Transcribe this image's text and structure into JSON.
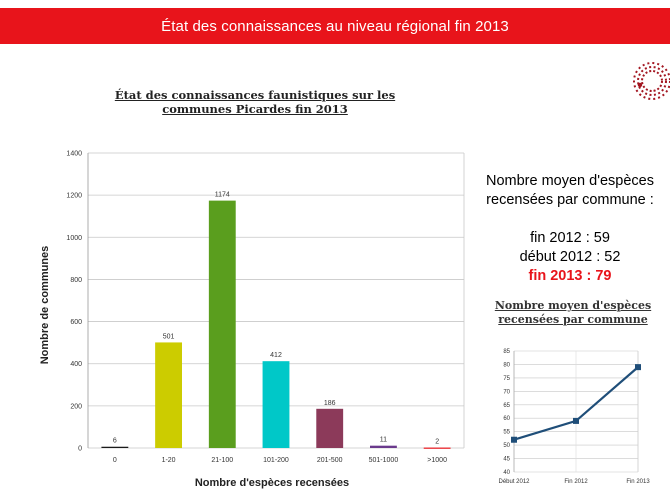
{
  "banner": {
    "title": "État des connaissances au niveau régional fin 2013"
  },
  "stats": {
    "heading_line1": "Nombre moyen d'espèces",
    "heading_line2": "recensées par commune :",
    "line_2012_end": "fin 2012 : 59",
    "line_2012_start": "début 2012 : 52",
    "line_2013_end": "fin 2013 : 79"
  },
  "colors": {
    "banner": "#e8141b",
    "highlight": "#e8141b",
    "line_series": "#1f4e79"
  },
  "chart_data": [
    {
      "type": "bar",
      "title_line1": "État des connaissances faunistiques sur les",
      "title_line2": "communes Picardes fin 2013",
      "xlabel": "Nombre d'espèces recensées",
      "ylabel": "Nombre de communes",
      "categories": [
        "0",
        "1-20",
        "21-100",
        "101-200",
        "201-500",
        "501-1000",
        ">1000"
      ],
      "values": [
        6,
        501,
        1174,
        412,
        186,
        11,
        2
      ],
      "value_labels": [
        "6",
        "501",
        "1174",
        "412",
        "186",
        "11",
        "2"
      ],
      "bar_colors": [
        "#1a1a1a",
        "#cccc00",
        "#5a9e1e",
        "#00c8c8",
        "#8c3a5a",
        "#6a3a8c",
        "#e8141b"
      ],
      "ylim": [
        0,
        1400
      ],
      "yticks": [
        0,
        200,
        400,
        600,
        800,
        1000,
        1200,
        1400
      ],
      "ytick_labels": [
        "0",
        "200",
        "400",
        "600",
        "800",
        "1000",
        "1200",
        "1400"
      ],
      "grid": true
    },
    {
      "type": "line",
      "title_line1": "Nombre moyen d'espèces",
      "title_line2": "recensées par commune",
      "categories": [
        "Début 2012",
        "Fin 2012",
        "Fin 2013"
      ],
      "values": [
        52,
        59,
        79
      ],
      "ylim": [
        40,
        85
      ],
      "yticks": [
        40,
        45,
        50,
        55,
        60,
        65,
        70,
        75,
        80,
        85
      ],
      "ytick_labels": [
        "40",
        "45",
        "50",
        "55",
        "60",
        "65",
        "70",
        "75",
        "80",
        "85"
      ],
      "grid": true
    }
  ]
}
